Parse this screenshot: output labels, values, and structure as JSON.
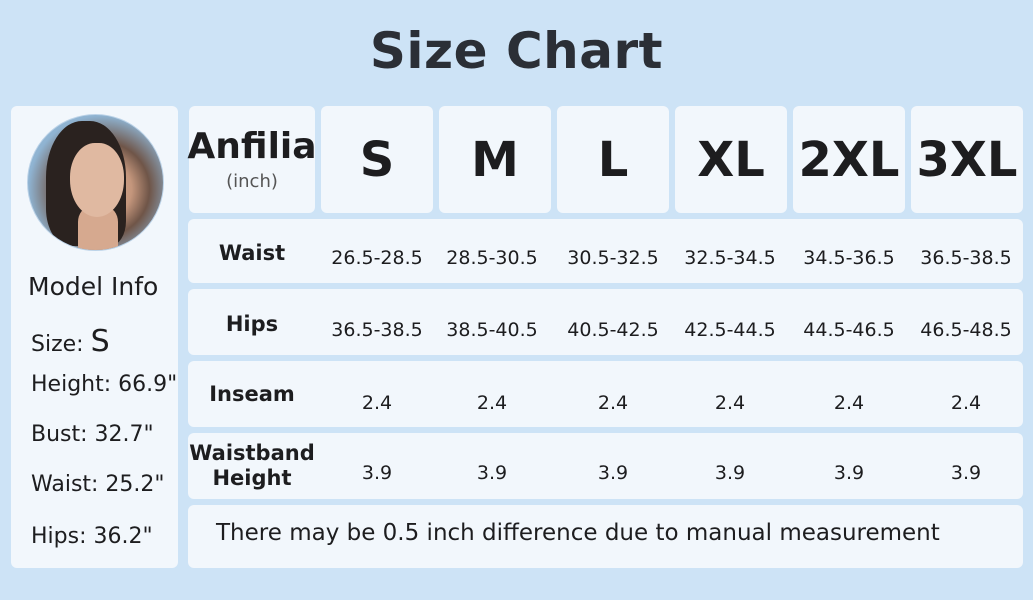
{
  "title": "Size Chart",
  "model": {
    "heading": "Model Info",
    "size_label": "Size:",
    "size_value": "S",
    "height": "Height: 66.9\"",
    "bust": "Bust: 32.7\"",
    "waist": "Waist: 25.2\"",
    "hips": "Hips: 36.2\""
  },
  "table": {
    "brand": "Anfilia",
    "unit": "(inch)",
    "sizes": [
      "S",
      "M",
      "L",
      "XL",
      "2XL",
      "3XL"
    ],
    "rows": [
      {
        "label": "Waist",
        "values": [
          "26.5-28.5",
          "28.5-30.5",
          "30.5-32.5",
          "32.5-34.5",
          "34.5-36.5",
          "36.5-38.5"
        ]
      },
      {
        "label": "Hips",
        "values": [
          "36.5-38.5",
          "38.5-40.5",
          "40.5-42.5",
          "42.5-44.5",
          "44.5-46.5",
          "46.5-48.5"
        ]
      },
      {
        "label": "Inseam",
        "values": [
          "2.4",
          "2.4",
          "2.4",
          "2.4",
          "2.4",
          "2.4"
        ]
      },
      {
        "label": "Waistband Height",
        "label_lines": [
          "Waistband",
          "Height"
        ],
        "values": [
          "3.9",
          "3.9",
          "3.9",
          "3.9",
          "3.9",
          "3.9"
        ]
      }
    ],
    "note": "There may be 0.5 inch difference due to manual measurement"
  }
}
